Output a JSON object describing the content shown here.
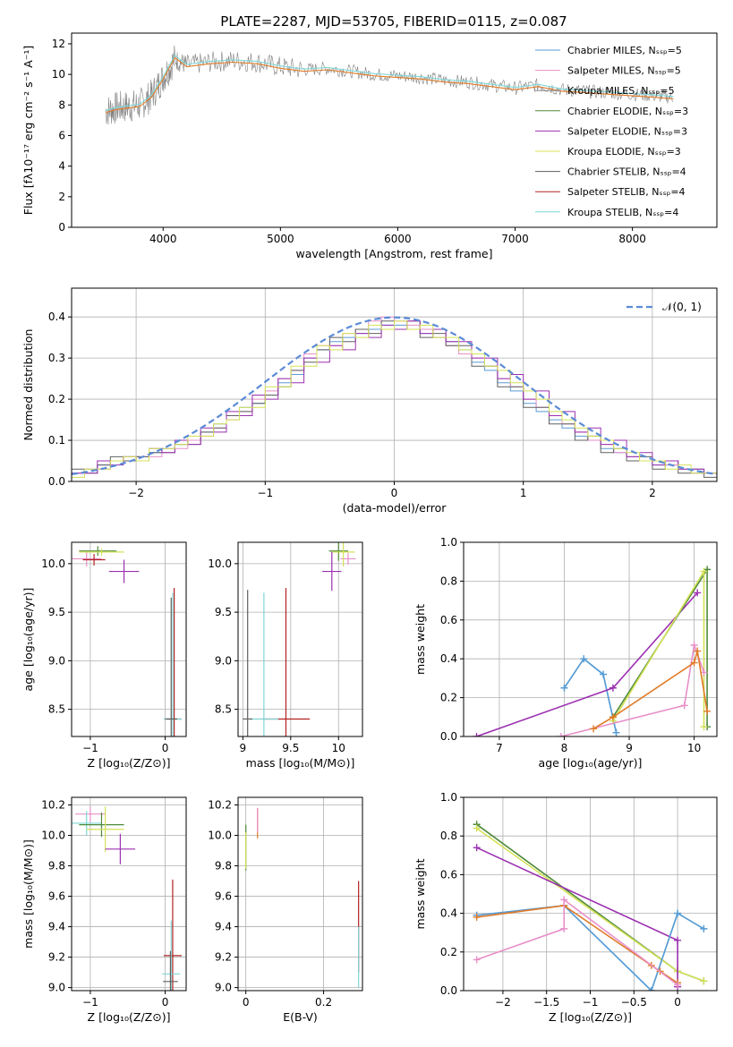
{
  "figure": {
    "title": "PLATE=2287, MJD=53705, FIBERID=0115, z=0.087"
  },
  "legend_colors": [
    "#5a9bd5",
    "#e88fc8",
    "#8a8a8a",
    "#4f8a3c",
    "#9b30b0",
    "#d4e157",
    "#606060",
    "#b22222",
    "#7fd6d6"
  ],
  "chart_data": [
    {
      "id": "spectrum",
      "type": "line",
      "title": "PLATE=2287, MJD=53705, FIBERID=0115, z=0.087",
      "xlabel": "wavelength [Angstrom, rest frame]",
      "ylabel": "Flux [fλ10⁻¹⁷ erg cm⁻² s⁻¹ A⁻¹]",
      "xlim": [
        3220,
        8720
      ],
      "ylim": [
        0,
        12.7
      ],
      "xticks": [
        4000,
        5000,
        6000,
        7000,
        8000
      ],
      "yticks": [
        0,
        2,
        4,
        6,
        8,
        10,
        12
      ],
      "grid": false,
      "legend": "top-right",
      "data_line": {
        "name": "data",
        "color": "#808080",
        "x": [
          3510,
          3600,
          3700,
          3800,
          3900,
          4000,
          4100,
          4200,
          4400,
          4600,
          4800,
          5000,
          5200,
          5400,
          5600,
          5800,
          6000,
          6200,
          6400,
          6600,
          6800,
          7000,
          7200,
          7400,
          7600,
          7800,
          8000,
          8200,
          8350
        ],
        "y": [
          7.6,
          7.8,
          7.9,
          8.0,
          8.6,
          9.8,
          11.0,
          10.6,
          10.8,
          10.9,
          10.8,
          10.5,
          10.3,
          10.4,
          10.2,
          10.0,
          9.9,
          9.8,
          9.6,
          9.5,
          9.3,
          9.1,
          9.3,
          9.0,
          8.9,
          8.8,
          8.7,
          8.6,
          8.5
        ]
      },
      "series": [
        {
          "name": "Chabrier MILES, N_SSP=5",
          "color": "#5a9bd5"
        },
        {
          "name": "Salpeter MILES, N_SSP=5",
          "color": "#e88fc8"
        },
        {
          "name": "Kroupa MILES, N_SSP=5",
          "color": "#8a8a8a"
        },
        {
          "name": "Chabrier ELODIE, N_SSP=3",
          "color": "#4f8a3c"
        },
        {
          "name": "Salpeter ELODIE, N_SSP=3",
          "color": "#9b30b0"
        },
        {
          "name": "Kroupa ELODIE, N_SSP=3",
          "color": "#d4e157"
        },
        {
          "name": "Chabrier STELIB, N_SSP=4",
          "color": "#606060"
        },
        {
          "name": "Salpeter STELIB, N_SSP=4",
          "color": "#b22222"
        },
        {
          "name": "Kroupa STELIB, N_SSP=4",
          "color": "#7fd6d6"
        }
      ],
      "model_line": {
        "colors": [
          "#e07b28",
          "#7fd6d6"
        ],
        "x": [
          3510,
          3600,
          3700,
          3800,
          3900,
          4000,
          4100,
          4200,
          4400,
          4600,
          4800,
          5000,
          5200,
          5400,
          5600,
          5800,
          6000,
          6200,
          6400,
          6600,
          6800,
          7000,
          7200,
          7400,
          7600,
          7800,
          8000,
          8200,
          8350
        ],
        "y": [
          7.5,
          7.7,
          7.8,
          7.9,
          8.5,
          9.7,
          11.1,
          10.5,
          10.7,
          10.8,
          10.7,
          10.4,
          10.2,
          10.3,
          10.1,
          9.9,
          9.8,
          9.7,
          9.5,
          9.4,
          9.2,
          9.0,
          9.2,
          8.9,
          8.8,
          8.7,
          8.6,
          8.5,
          8.4
        ]
      }
    },
    {
      "id": "residuals",
      "type": "histogram",
      "xlabel": "(data-model)/error",
      "ylabel": "Normed distribution",
      "xlim": [
        -2.5,
        2.5
      ],
      "ylim": [
        0,
        0.47
      ],
      "xticks": [
        -2,
        -1,
        0,
        1,
        2
      ],
      "yticks": [
        0.0,
        0.1,
        0.2,
        0.3,
        0.4
      ],
      "grid": true,
      "legend": "top-right",
      "gaussian_label": "𝒩(0, 1)",
      "gaussian_color": "#5b8bd6",
      "bin_width": 0.1,
      "series": [
        {
          "color": "#5a9bd5",
          "values": [
            0.02,
            0.03,
            0.04,
            0.05,
            0.06,
            0.06,
            0.07,
            0.08,
            0.09,
            0.1,
            0.12,
            0.14,
            0.16,
            0.18,
            0.19,
            0.21,
            0.24,
            0.26,
            0.3,
            0.32,
            0.34,
            0.35,
            0.36,
            0.37,
            0.38,
            0.38,
            0.37,
            0.36,
            0.35,
            0.34,
            0.32,
            0.29,
            0.27,
            0.24,
            0.22,
            0.19,
            0.17,
            0.15,
            0.13,
            0.11,
            0.1,
            0.08,
            0.07,
            0.06,
            0.05,
            0.04,
            0.04,
            0.03,
            0.02,
            0.02
          ]
        },
        {
          "color": "#e88fc8",
          "values": [
            0.02,
            0.03,
            0.03,
            0.05,
            0.05,
            0.06,
            0.06,
            0.08,
            0.08,
            0.1,
            0.11,
            0.13,
            0.15,
            0.17,
            0.2,
            0.22,
            0.25,
            0.27,
            0.31,
            0.33,
            0.33,
            0.36,
            0.37,
            0.39,
            0.4,
            0.39,
            0.38,
            0.37,
            0.35,
            0.33,
            0.31,
            0.3,
            0.28,
            0.25,
            0.23,
            0.2,
            0.18,
            0.16,
            0.14,
            0.12,
            0.1,
            0.09,
            0.07,
            0.06,
            0.05,
            0.05,
            0.04,
            0.03,
            0.02,
            0.02
          ]
        },
        {
          "color": "#606060",
          "values": [
            0.03,
            0.02,
            0.04,
            0.06,
            0.05,
            0.06,
            0.07,
            0.07,
            0.09,
            0.09,
            0.12,
            0.13,
            0.16,
            0.17,
            0.19,
            0.21,
            0.23,
            0.27,
            0.29,
            0.32,
            0.35,
            0.34,
            0.37,
            0.36,
            0.39,
            0.37,
            0.39,
            0.35,
            0.36,
            0.33,
            0.33,
            0.28,
            0.28,
            0.23,
            0.23,
            0.18,
            0.18,
            0.14,
            0.14,
            0.1,
            0.11,
            0.07,
            0.08,
            0.05,
            0.06,
            0.03,
            0.05,
            0.02,
            0.03,
            0.01
          ]
        },
        {
          "color": "#9b30b0",
          "values": [
            0.02,
            0.02,
            0.05,
            0.04,
            0.06,
            0.05,
            0.08,
            0.07,
            0.1,
            0.09,
            0.13,
            0.12,
            0.17,
            0.16,
            0.21,
            0.2,
            0.25,
            0.24,
            0.3,
            0.29,
            0.33,
            0.32,
            0.36,
            0.35,
            0.38,
            0.37,
            0.39,
            0.36,
            0.37,
            0.34,
            0.34,
            0.3,
            0.3,
            0.25,
            0.26,
            0.2,
            0.22,
            0.16,
            0.17,
            0.12,
            0.13,
            0.09,
            0.1,
            0.06,
            0.07,
            0.04,
            0.05,
            0.03,
            0.03,
            0.02
          ]
        },
        {
          "color": "#d4e157",
          "values": [
            0.01,
            0.03,
            0.03,
            0.05,
            0.06,
            0.05,
            0.08,
            0.08,
            0.09,
            0.11,
            0.11,
            0.14,
            0.15,
            0.18,
            0.18,
            0.23,
            0.23,
            0.28,
            0.28,
            0.33,
            0.32,
            0.36,
            0.35,
            0.38,
            0.37,
            0.39,
            0.37,
            0.38,
            0.35,
            0.35,
            0.32,
            0.31,
            0.28,
            0.27,
            0.24,
            0.22,
            0.2,
            0.17,
            0.15,
            0.13,
            0.11,
            0.1,
            0.08,
            0.07,
            0.05,
            0.05,
            0.03,
            0.04,
            0.02,
            0.02
          ]
        }
      ]
    },
    {
      "id": "age-vs-Z",
      "type": "errorbar",
      "xlabel": "Z [log₁₀(Z/Z⊙)]",
      "ylabel": "age  [log₁₀(age/yr)]",
      "xlim": [
        -1.25,
        0.28
      ],
      "ylim": [
        8.22,
        10.22
      ],
      "xticks": [
        -1,
        0
      ],
      "yticks": [
        8.5,
        9.0,
        9.5,
        10.0
      ],
      "grid": true,
      "points": [
        {
          "x": -1.05,
          "y": 10.05,
          "xerr": 0.2,
          "yerr": 0.08,
          "color": "#e88fc8"
        },
        {
          "x": -0.95,
          "y": 10.04,
          "xerr": 0.15,
          "yerr": 0.06,
          "color": "#b22222"
        },
        {
          "x": -0.9,
          "y": 10.13,
          "xerr": 0.25,
          "yerr": 0.05,
          "color": "#4f8a3c"
        },
        {
          "x": -0.85,
          "y": 10.12,
          "xerr": 0.3,
          "yerr": 0.04,
          "color": "#d4e157"
        },
        {
          "x": -0.55,
          "y": 9.92,
          "xerr": 0.2,
          "yerr": 0.12,
          "color": "#9b30b0"
        },
        {
          "x": 0.12,
          "y": 8.4,
          "xerr": 0.1,
          "yerr": 1.35,
          "color": "#b22222"
        },
        {
          "x": 0.1,
          "y": 8.4,
          "xerr": 0.12,
          "yerr": 1.3,
          "color": "#7fd6d6"
        },
        {
          "x": 0.08,
          "y": 8.4,
          "xerr": 0.08,
          "yerr": 1.25,
          "color": "#606060"
        }
      ]
    },
    {
      "id": "age-vs-mass",
      "type": "errorbar",
      "xlabel": "mass [log₁₀(M/M⊙)]",
      "ylabel": "",
      "xlim": [
        8.95,
        10.25
      ],
      "ylim": [
        8.22,
        10.22
      ],
      "xticks": [
        9.0,
        9.5,
        10.0
      ],
      "yticks": [
        8.5,
        9.0,
        9.5,
        10.0
      ],
      "grid": true,
      "points": [
        {
          "x": 10.1,
          "y": 10.05,
          "xerr": 0.08,
          "yerr": 0.06,
          "color": "#e88fc8"
        },
        {
          "x": 10.0,
          "y": 10.13,
          "xerr": 0.1,
          "yerr": 0.1,
          "color": "#4f8a3c"
        },
        {
          "x": 10.05,
          "y": 10.12,
          "xerr": 0.12,
          "yerr": 0.15,
          "color": "#d4e157"
        },
        {
          "x": 9.93,
          "y": 9.92,
          "xerr": 0.1,
          "yerr": 0.2,
          "color": "#9b30b0"
        },
        {
          "x": 9.45,
          "y": 8.4,
          "xerr": 0.25,
          "yerr": 1.35,
          "color": "#b22222"
        },
        {
          "x": 9.22,
          "y": 8.4,
          "xerr": 0.15,
          "yerr": 1.3,
          "color": "#7fd6d6"
        },
        {
          "x": 9.05,
          "y": 8.4,
          "xerr": 0.05,
          "yerr": 1.33,
          "color": "#606060"
        }
      ]
    },
    {
      "id": "mass-weight-vs-age",
      "type": "line",
      "xlabel": "age  [log₁₀(age/yr)]",
      "ylabel": "mass weight",
      "xlim": [
        6.45,
        10.35
      ],
      "ylim": [
        0.0,
        1.0
      ],
      "xticks": [
        7,
        8,
        9,
        10
      ],
      "yticks": [
        0.0,
        0.2,
        0.4,
        0.6,
        0.8,
        1.0
      ],
      "grid": true,
      "series": [
        {
          "color": "#7fd6d6",
          "x": [
            8.0,
            8.3,
            8.6,
            8.8
          ],
          "y": [
            0.25,
            0.4,
            0.32,
            0.02
          ]
        },
        {
          "color": "#5a9bd5",
          "x": [
            8.0,
            8.3,
            8.6,
            8.8
          ],
          "y": [
            0.25,
            0.4,
            0.32,
            0.02
          ]
        },
        {
          "color": "#9b30b0",
          "x": [
            6.65,
            8.75,
            10.05
          ],
          "y": [
            0.0,
            0.25,
            0.74
          ]
        },
        {
          "color": "#4f8a3c",
          "x": [
            8.75,
            10.2,
            10.2
          ],
          "y": [
            0.1,
            0.86,
            0.05
          ]
        },
        {
          "color": "#d4e157",
          "x": [
            8.75,
            10.15,
            10.15
          ],
          "y": [
            0.08,
            0.85,
            0.05
          ]
        },
        {
          "color": "#e88fc8",
          "x": [
            7.95,
            9.85,
            10.0,
            10.15
          ],
          "y": [
            0.0,
            0.16,
            0.47,
            0.33
          ]
        },
        {
          "color": "#e07b28",
          "x": [
            8.45,
            8.75,
            10.0,
            10.05,
            10.2
          ],
          "y": [
            0.04,
            0.1,
            0.38,
            0.44,
            0.13
          ]
        }
      ]
    },
    {
      "id": "mass-vs-Z",
      "type": "errorbar",
      "xlabel": "Z [log₁₀(Z/Z⊙)]",
      "ylabel": "mass [log₁₀(M/M⊙)]",
      "xlim": [
        -1.25,
        0.28
      ],
      "ylim": [
        8.98,
        10.25
      ],
      "xticks": [
        -1,
        0
      ],
      "yticks": [
        9.0,
        9.2,
        9.4,
        9.6,
        9.8,
        10.0,
        10.2
      ],
      "grid": true,
      "points": [
        {
          "x": -1.0,
          "y": 10.14,
          "xerr": 0.2,
          "yerr": 0.05,
          "color": "#e88fc8"
        },
        {
          "x": -1.05,
          "y": 10.08,
          "xerr": 0.2,
          "yerr": 0.08,
          "color": "#7fd6d6"
        },
        {
          "x": -0.85,
          "y": 10.07,
          "xerr": 0.3,
          "yerr": 0.08,
          "color": "#4f8a3c"
        },
        {
          "x": -0.8,
          "y": 10.04,
          "xerr": 0.25,
          "yerr": 0.15,
          "color": "#d4e157"
        },
        {
          "x": -0.6,
          "y": 9.91,
          "xerr": 0.2,
          "yerr": 0.1,
          "color": "#9b30b0"
        },
        {
          "x": 0.1,
          "y": 9.21,
          "xerr": 0.12,
          "yerr": 0.5,
          "color": "#b22222"
        },
        {
          "x": 0.08,
          "y": 9.09,
          "xerr": 0.12,
          "yerr": 0.35,
          "color": "#7fd6d6"
        },
        {
          "x": 0.07,
          "y": 9.04,
          "xerr": 0.1,
          "yerr": 0.2,
          "color": "#606060"
        }
      ]
    },
    {
      "id": "mass-vs-EBV",
      "type": "errorbar",
      "xlabel": "E(B-V)",
      "ylabel": "",
      "xlim": [
        -0.02,
        0.3
      ],
      "ylim": [
        8.98,
        10.25
      ],
      "xticks": [
        0.0,
        0.2
      ],
      "yticks": [
        9.0,
        9.2,
        9.4,
        9.6,
        9.8,
        10.0,
        10.2
      ],
      "grid": true,
      "points": [
        {
          "x": 0.0,
          "y": 9.92,
          "xerr": 0.0,
          "yerr": 0.15,
          "color": "#4f8a3c"
        },
        {
          "x": 0.0,
          "y": 9.9,
          "xerr": 0.0,
          "yerr": 0.12,
          "color": "#d4e157"
        },
        {
          "x": 0.03,
          "y": 10.08,
          "xerr": 0.0,
          "yerr": 0.1,
          "color": "#e07b28"
        },
        {
          "x": 0.03,
          "y": 10.1,
          "xerr": 0.0,
          "yerr": 0.08,
          "color": "#e88fc8"
        },
        {
          "x": 0.29,
          "y": 9.4,
          "xerr": 0.0,
          "yerr": 0.3,
          "color": "#b22222"
        },
        {
          "x": 0.29,
          "y": 9.2,
          "xerr": 0.0,
          "yerr": 0.2,
          "color": "#7fd6d6"
        }
      ]
    },
    {
      "id": "mass-weight-vs-Z",
      "type": "line",
      "xlabel": "Z [log₁₀(Z/Z⊙)]",
      "ylabel": "mass weight",
      "xlim": [
        -2.45,
        0.45
      ],
      "ylim": [
        0.0,
        1.0
      ],
      "xticks": [
        -2.0,
        -1.5,
        -1.0,
        -0.5,
        0.0
      ],
      "yticks": [
        0.0,
        0.2,
        0.4,
        0.6,
        0.8,
        1.0
      ],
      "grid": true,
      "series": [
        {
          "color": "#4f8a3c",
          "x": [
            -2.3,
            0.0,
            0.3
          ],
          "y": [
            0.86,
            0.1,
            0.05
          ]
        },
        {
          "color": "#d4e157",
          "x": [
            -2.3,
            0.0,
            0.3
          ],
          "y": [
            0.84,
            0.1,
            0.05
          ]
        },
        {
          "color": "#9b30b0",
          "x": [
            -2.3,
            0.0,
            0.0
          ],
          "y": [
            0.74,
            0.26,
            0.02
          ]
        },
        {
          "color": "#7fd6d6",
          "x": [
            -2.3,
            -1.3,
            -0.3,
            0.0,
            0.3
          ],
          "y": [
            0.39,
            0.44,
            0.0,
            0.4,
            0.32
          ]
        },
        {
          "color": "#5a9bd5",
          "x": [
            -2.3,
            -1.3,
            -0.3,
            0.0,
            0.3
          ],
          "y": [
            0.39,
            0.44,
            0.0,
            0.4,
            0.32
          ]
        },
        {
          "color": "#e07b28",
          "x": [
            -2.3,
            -1.3,
            -0.3,
            -0.2,
            0.0,
            0.0
          ],
          "y": [
            0.38,
            0.44,
            0.13,
            0.1,
            0.04,
            0.04
          ]
        },
        {
          "color": "#e88fc8",
          "x": [
            -2.3,
            -1.3,
            -1.3,
            0.0
          ],
          "y": [
            0.16,
            0.32,
            0.47,
            0.03
          ]
        }
      ]
    }
  ]
}
